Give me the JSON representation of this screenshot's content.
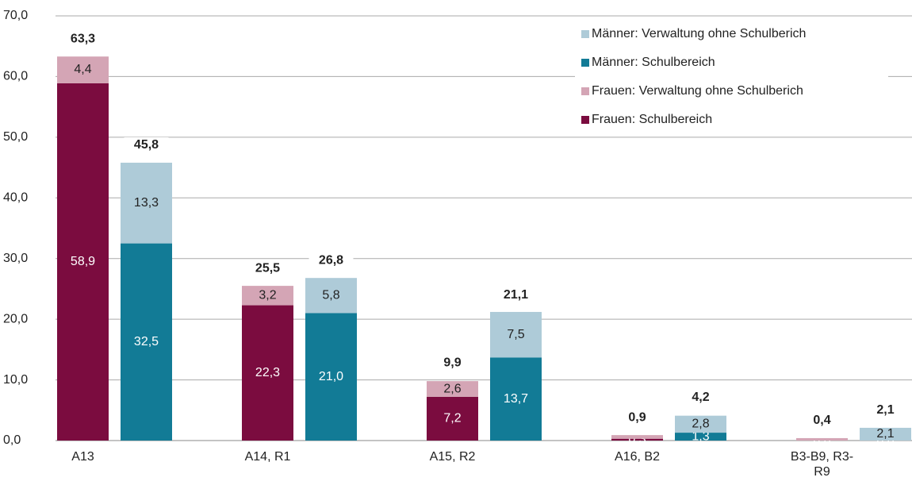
{
  "chart_data": {
    "type": "grouped_stacked_bar",
    "categories": [
      "A13",
      "A14, R1",
      "A15, R2",
      "A16, B2",
      "B3-B9, R3-R9"
    ],
    "stacks": [
      {
        "series": [
          {
            "name": "Frauen: Schulbereich",
            "color": "#7b0c3f",
            "values": [
              58.9,
              22.3,
              7.2,
              0.3,
              0.0
            ],
            "value_labels": [
              "58,9",
              "22,3",
              "7,2",
              "0,3",
              "0,0"
            ]
          },
          {
            "name": "Frauen: Verwaltung ohne Schulberich",
            "color": "#d4a5b5",
            "values": [
              4.4,
              3.2,
              2.6,
              0.6,
              0.4
            ],
            "value_labels": [
              "4,4",
              "3,2",
              "2,6",
              "0,6",
              "0,4"
            ]
          }
        ],
        "totals": [
          63.3,
          25.5,
          9.9,
          0.9,
          0.4
        ],
        "total_labels": [
          "63,3",
          "25,5",
          "9,9",
          "0,9",
          "0,4"
        ]
      },
      {
        "series": [
          {
            "name": "Männer: Schulbereich",
            "color": "#127b96",
            "values": [
              32.5,
              21.0,
              13.7,
              1.3,
              0.0
            ],
            "value_labels": [
              "32,5",
              "21,0",
              "13,7",
              "1,3",
              "0,0"
            ]
          },
          {
            "name": "Männer: Verwaltung ohne Schulberich",
            "color": "#aecbd8",
            "values": [
              13.3,
              5.8,
              7.5,
              2.8,
              2.1
            ],
            "value_labels": [
              "13,3",
              "5,8",
              "7,5",
              "2,8",
              "2,1"
            ]
          }
        ],
        "totals": [
          45.8,
          26.8,
          21.1,
          4.2,
          2.1
        ],
        "total_labels": [
          "45,8",
          "26,8",
          "21,1",
          "4,2",
          "2,1"
        ]
      }
    ],
    "ylim": [
      0,
      70
    ],
    "yticks": [
      {
        "value": 0,
        "label": "0,0"
      },
      {
        "value": 10,
        "label": "10,0"
      },
      {
        "value": 20,
        "label": "20,0"
      },
      {
        "value": 30,
        "label": "30,0"
      },
      {
        "value": 40,
        "label": "40,0"
      },
      {
        "value": 50,
        "label": "50,0"
      },
      {
        "value": 60,
        "label": "60,0"
      },
      {
        "value": 70,
        "label": "70,0"
      }
    ],
    "grid": true,
    "legend": "top-right"
  }
}
